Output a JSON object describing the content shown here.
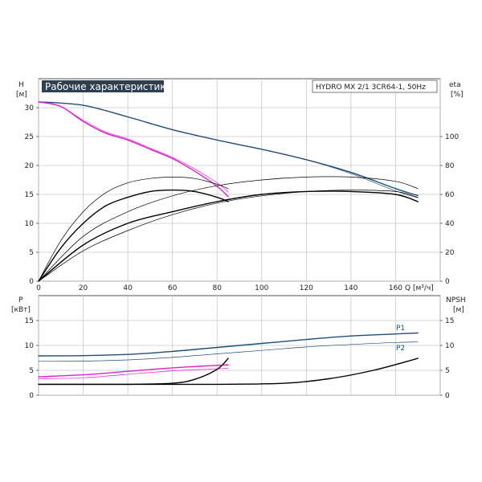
{
  "chart_data": [
    {
      "type": "line",
      "title": "Рабочие характеристики",
      "model": "HYDRO MX 2/1 3CR64-1, 50Hz",
      "ylabel_left": "H",
      "ylabel_left_unit": "[м]",
      "ylabel_right": "eta",
      "ylabel_right_unit": "[%]",
      "xlabel": "Q",
      "xlabel_unit": "[м³/ч]",
      "xlim": [
        0,
        180
      ],
      "ylim_left": [
        0,
        35
      ],
      "ylim_right": [
        0,
        140
      ],
      "x_ticks": [
        0,
        20,
        40,
        60,
        80,
        100,
        120,
        140,
        160
      ],
      "y_ticks_left": [
        0,
        5,
        10,
        15,
        20,
        25,
        30
      ],
      "y_ticks_right": [
        0,
        20,
        40,
        60,
        80,
        100
      ],
      "grid": true,
      "colors": {
        "h_dark": "#1f4e79",
        "h_pink": "#e020d0",
        "eta": "#000000",
        "grid": "#c8c8c8",
        "title_bg": "#2f3f4f"
      },
      "series": [
        {
          "axis": "left",
          "color": "#1f4e79",
          "x": [
            0,
            20,
            40,
            60,
            80,
            100,
            120,
            140,
            160,
            170
          ],
          "y": [
            31,
            30.4,
            28.4,
            26.2,
            24.4,
            22.8,
            21,
            18.8,
            16.0,
            14.8
          ]
        },
        {
          "axis": "left",
          "color": "#1f4e79",
          "thin": true,
          "x": [
            0,
            20,
            40,
            60,
            80,
            100,
            120,
            140,
            160,
            170
          ],
          "y": [
            31,
            30.4,
            28.4,
            26.2,
            24.4,
            22.8,
            21,
            18.6,
            15.6,
            14.4
          ]
        },
        {
          "axis": "left",
          "color": "#e020d0",
          "x": [
            0,
            10,
            20,
            30,
            40,
            50,
            60,
            70,
            80,
            85
          ],
          "y": [
            31,
            30.2,
            27.6,
            25.6,
            24.4,
            22.8,
            21.2,
            19.0,
            16.4,
            14.6
          ]
        },
        {
          "axis": "left",
          "color": "#e020d0",
          "thin": true,
          "x": [
            0,
            10,
            20,
            30,
            40,
            50,
            60,
            70,
            80,
            85
          ],
          "y": [
            31,
            30.2,
            27.8,
            25.8,
            24.6,
            23.0,
            21.4,
            19.4,
            17.0,
            15.4
          ]
        },
        {
          "axis": "right",
          "color": "#000000",
          "x": [
            0,
            10,
            20,
            30,
            40,
            50,
            60,
            70,
            80,
            85
          ],
          "y": [
            0,
            23,
            40,
            52,
            58,
            62,
            63,
            62,
            58,
            55
          ]
        },
        {
          "axis": "right",
          "color": "#000000",
          "thin": true,
          "x": [
            0,
            10,
            20,
            30,
            40,
            50,
            60,
            70,
            80,
            85
          ],
          "y": [
            0,
            28,
            48,
            61,
            68,
            71,
            72,
            71,
            67,
            64
          ]
        },
        {
          "axis": "right",
          "color": "#000000",
          "x": [
            0,
            20,
            40,
            60,
            80,
            100,
            120,
            140,
            160,
            170
          ],
          "y": [
            0,
            25,
            40,
            48,
            55,
            60,
            62,
            62,
            60,
            55
          ]
        },
        {
          "axis": "right",
          "color": "#000000",
          "thin": true,
          "x": [
            0,
            20,
            40,
            60,
            80,
            100,
            120,
            140,
            160,
            170
          ],
          "y": [
            0,
            31,
            48,
            59,
            66,
            70,
            72,
            72,
            69,
            64
          ]
        },
        {
          "axis": "right",
          "color": "#000000",
          "thin": true,
          "x": [
            0,
            20,
            40,
            60,
            80,
            100,
            120,
            140,
            160,
            170
          ],
          "y": [
            0,
            21,
            35,
            46,
            54,
            59,
            62,
            63,
            62,
            58
          ]
        }
      ]
    },
    {
      "type": "line",
      "ylabel_left": "P",
      "ylabel_left_unit": "[кВт]",
      "ylabel_right": "NPSH",
      "ylabel_right_unit": "[м]",
      "xlim": [
        0,
        180
      ],
      "ylim_left": [
        0,
        20
      ],
      "ylim_right": [
        0,
        20
      ],
      "y_ticks_left": [
        0,
        5,
        10,
        15
      ],
      "y_ticks_right": [
        0,
        5,
        10,
        15
      ],
      "grid": true,
      "legend": [
        "P1",
        "P2"
      ],
      "series": [
        {
          "name": "P1",
          "axis": "left",
          "color": "#1f4e79",
          "x": [
            0,
            20,
            40,
            60,
            80,
            100,
            120,
            140,
            160,
            170
          ],
          "y": [
            7.9,
            7.95,
            8.2,
            8.8,
            9.6,
            10.4,
            11.2,
            11.9,
            12.3,
            12.5
          ]
        },
        {
          "name": "P2",
          "axis": "left",
          "color": "#1f4e79",
          "thin": true,
          "x": [
            0,
            20,
            40,
            60,
            80,
            100,
            120,
            140,
            160,
            170
          ],
          "y": [
            6.8,
            6.85,
            7.1,
            7.6,
            8.3,
            9.0,
            9.7,
            10.2,
            10.6,
            10.7
          ]
        },
        {
          "axis": "left",
          "color": "#e020d0",
          "x": [
            0,
            20,
            40,
            60,
            80,
            85
          ],
          "y": [
            3.7,
            4.1,
            4.8,
            5.5,
            6.0,
            6.1
          ]
        },
        {
          "axis": "left",
          "color": "#e020d0",
          "thin": true,
          "x": [
            0,
            20,
            40,
            60,
            80,
            85
          ],
          "y": [
            3.3,
            3.5,
            4.2,
            4.9,
            5.3,
            5.4
          ]
        },
        {
          "axis": "right",
          "color": "#000000",
          "x": [
            0,
            20,
            40,
            60,
            70,
            80,
            85
          ],
          "y": [
            2.2,
            2.2,
            2.2,
            2.4,
            3.2,
            5.2,
            7.4
          ]
        },
        {
          "axis": "right",
          "color": "#000000",
          "x": [
            0,
            40,
            80,
            110,
            130,
            150,
            170
          ],
          "y": [
            2.2,
            2.2,
            2.2,
            2.4,
            3.3,
            5.0,
            7.4
          ]
        }
      ]
    }
  ]
}
